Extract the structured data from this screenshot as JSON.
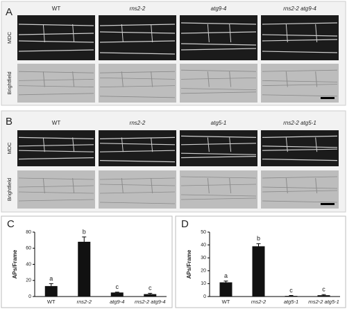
{
  "panels": {
    "A": {
      "label": "A",
      "columns": [
        "WT",
        "rns2-2",
        "atg9-4",
        "rns2-2 atg9-4"
      ],
      "rows": [
        "MDC",
        "Brightfield"
      ]
    },
    "B": {
      "label": "B",
      "columns": [
        "WT",
        "rns2-2",
        "atg5-1",
        "rns2-2 atg5-1"
      ],
      "rows": [
        "MDC",
        "Brightfield"
      ]
    }
  },
  "chart_data": [
    {
      "type": "bar",
      "panel_label": "C",
      "y_label": "APs/Frame",
      "categories": [
        "WT",
        "rns2-2",
        "atg9-4",
        "rns2-2 atg9-4"
      ],
      "values": [
        13,
        68,
        5,
        3
      ],
      "errors": [
        3,
        6,
        0.5,
        1
      ],
      "letters": [
        "a",
        "b",
        "c",
        "c"
      ],
      "color": "#111111",
      "ylim": [
        0,
        80
      ],
      "yticks": [
        0,
        20,
        40,
        60,
        80
      ]
    },
    {
      "type": "bar",
      "panel_label": "D",
      "y_label": "APs/Frame",
      "categories": [
        "WT",
        "rns2-2",
        "atg5-1",
        "rns2-2 atg5-1"
      ],
      "values": [
        11,
        39,
        0.5,
        1
      ],
      "errors": [
        1,
        2,
        0.3,
        0.5
      ],
      "letters": [
        "a",
        "b",
        "c",
        "c"
      ],
      "color": "#111111",
      "ylim": [
        0,
        50
      ],
      "yticks": [
        0,
        10,
        20,
        30,
        40,
        50
      ]
    }
  ]
}
